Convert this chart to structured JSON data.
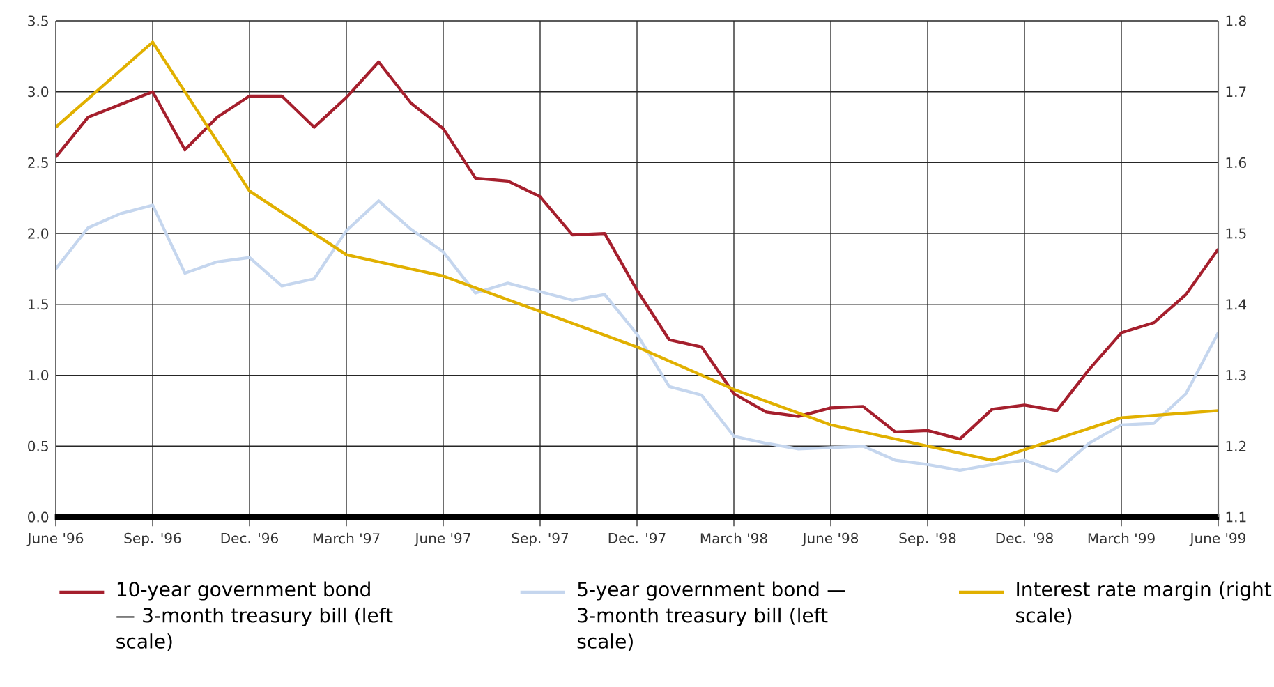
{
  "chart_data": {
    "type": "line",
    "categories": [
      "June '96",
      null,
      null,
      "Sep. '96",
      null,
      null,
      "Dec. '96",
      null,
      null,
      "March '97",
      null,
      null,
      "June '97",
      null,
      null,
      "Sep. '97",
      null,
      null,
      "Dec. '97",
      null,
      null,
      "March '98",
      null,
      null,
      "June '98",
      null,
      null,
      "Sep. '98",
      null,
      null,
      "Dec. '98",
      null,
      null,
      "March '99",
      null,
      null,
      "June '99"
    ],
    "series": [
      {
        "name": "10-year government bond — 3-month treasury bill (left scale)",
        "color": "#a51f2d",
        "values": [
          2.54,
          2.82,
          2.91,
          3.0,
          2.59,
          2.82,
          2.97,
          2.97,
          2.75,
          2.96,
          3.21,
          2.92,
          2.74,
          2.39,
          2.37,
          2.26,
          1.99,
          2.0,
          1.6,
          1.25,
          1.2,
          0.87,
          0.74,
          0.71,
          0.77,
          0.78,
          0.6,
          0.61,
          0.55,
          0.76,
          0.79,
          0.75,
          1.04,
          1.3,
          1.37,
          1.57,
          1.89
        ]
      },
      {
        "name": "5-year government bond — 3-month treasury bill (left scale)",
        "color": "#c5d6ee",
        "values": [
          1.75,
          2.04,
          2.14,
          2.2,
          1.72,
          1.8,
          1.83,
          1.63,
          1.68,
          2.02,
          2.23,
          2.03,
          1.87,
          1.58,
          1.65,
          1.59,
          1.53,
          1.57,
          1.29,
          0.92,
          0.86,
          0.57,
          0.52,
          0.48,
          0.49,
          0.5,
          0.4,
          0.37,
          0.33,
          0.37,
          0.4,
          0.32,
          0.52,
          0.65,
          0.66,
          0.87,
          1.3
        ]
      },
      {
        "name": "Interest rate margin (right scale)",
        "color": "#e1b000",
        "axis": "y2",
        "values": [
          1.65,
          null,
          null,
          1.77,
          null,
          null,
          1.56,
          null,
          null,
          1.47,
          null,
          null,
          1.44,
          null,
          null,
          1.39,
          null,
          null,
          1.34,
          null,
          null,
          1.28,
          null,
          null,
          1.23,
          null,
          null,
          1.2,
          null,
          1.18,
          null,
          null,
          null,
          1.24,
          null,
          null,
          1.25
        ]
      }
    ],
    "ylim": [
      0,
      3.5
    ],
    "yticks": [
      {
        "value": 0,
        "label": "0.0"
      },
      {
        "value": 0.5,
        "label": "0.5"
      },
      {
        "value": 1,
        "label": "1.0"
      },
      {
        "value": 1.5,
        "label": "1.5"
      },
      {
        "value": 2,
        "label": "2.0"
      },
      {
        "value": 2.5,
        "label": "2.5"
      },
      {
        "value": 3,
        "label": "3.0"
      },
      {
        "value": 3.5,
        "label": "3.5"
      }
    ],
    "y2lim": [
      1.1,
      1.8
    ],
    "y2ticks": [
      1.1,
      1.2,
      1.3,
      1.4,
      1.5,
      1.6,
      1.7,
      1.8
    ],
    "grid": true,
    "legend": "bottom"
  }
}
